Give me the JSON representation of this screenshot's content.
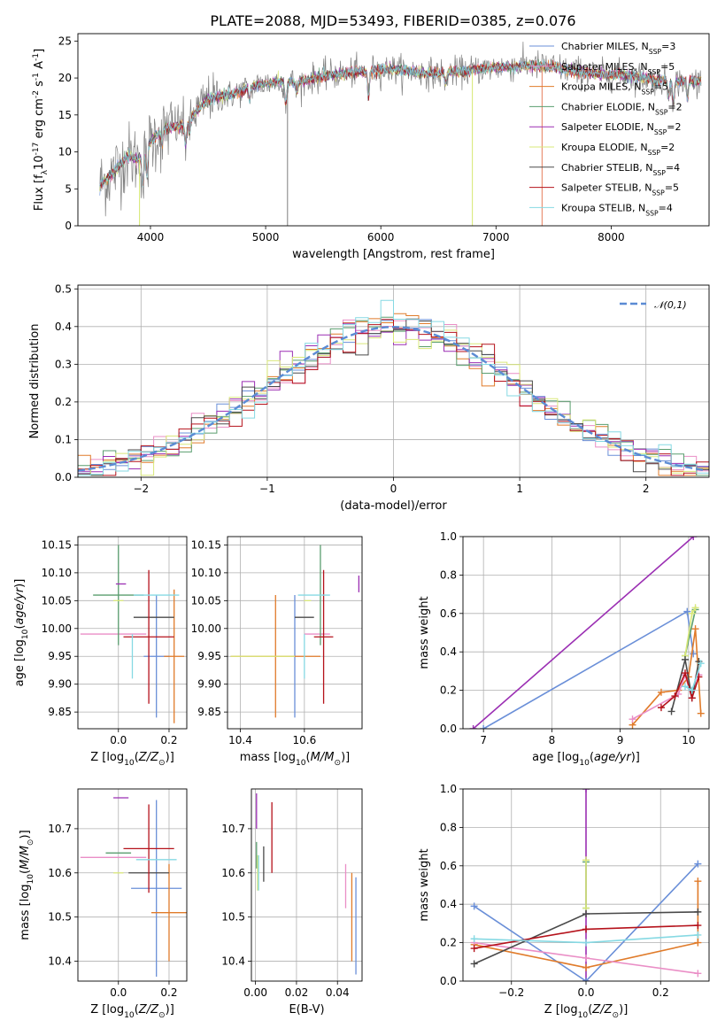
{
  "chart_data": [
    {
      "type": "line",
      "title": "PLATE=2088, MJD=53493, FIBERID=0385, z=0.076",
      "xlabel": "wavelength [Angstrom, rest frame]",
      "ylabel": "Flux [f$_\\lambda$10$^{-17}$ erg cm$^{-2}$ s$^{-1}$ A$^{-1}$]",
      "xlim": [
        3370,
        8850
      ],
      "ylim": [
        0,
        26
      ],
      "xticks": [
        4000,
        5000,
        6000,
        7000,
        8000
      ],
      "yticks": [
        0,
        5,
        10,
        15,
        20,
        25
      ],
      "grid": false,
      "legend_position": "top-right",
      "continuum_anchors": [
        [
          3560,
          5.5
        ],
        [
          3650,
          6.8
        ],
        [
          3800,
          9.3
        ],
        [
          3900,
          9.0
        ],
        [
          4000,
          11.4
        ],
        [
          4100,
          13.0
        ],
        [
          4300,
          13.8
        ],
        [
          4500,
          17.2
        ],
        [
          4700,
          17.7
        ],
        [
          4900,
          19.0
        ],
        [
          5100,
          19.5
        ],
        [
          5300,
          19.5
        ],
        [
          5500,
          20.3
        ],
        [
          5700,
          20.6
        ],
        [
          5900,
          21.0
        ],
        [
          6100,
          21.2
        ],
        [
          6300,
          20.8
        ],
        [
          6500,
          20.6
        ],
        [
          6700,
          20.9
        ],
        [
          6900,
          21.3
        ],
        [
          7100,
          21.5
        ],
        [
          7300,
          21.7
        ],
        [
          7500,
          21.5
        ],
        [
          7700,
          20.9
        ],
        [
          7900,
          20.5
        ],
        [
          8100,
          20.4
        ],
        [
          8300,
          20.0
        ],
        [
          8500,
          19.5
        ],
        [
          8700,
          19.6
        ],
        [
          8780,
          19.5
        ]
      ],
      "absorption_lines": [
        {
          "x": 3934,
          "depth": 4.5
        },
        {
          "x": 3969,
          "depth": 4.0
        },
        {
          "x": 4101,
          "depth": 2.0
        },
        {
          "x": 4304,
          "depth": 3.0
        },
        {
          "x": 4340,
          "depth": 2.0
        },
        {
          "x": 4861,
          "depth": 1.5
        },
        {
          "x": 5175,
          "depth": 3.0
        },
        {
          "x": 5270,
          "depth": 1.5
        },
        {
          "x": 5893,
          "depth": 3.5
        },
        {
          "x": 6563,
          "depth": 1.5
        },
        {
          "x": 8498,
          "depth": 2.0
        },
        {
          "x": 8542,
          "depth": 3.0
        },
        {
          "x": 8662,
          "depth": 2.5
        }
      ],
      "spikes": [
        {
          "x": 3905,
          "color": "#d5e871"
        },
        {
          "x": 5190,
          "color": "#7f7f7f"
        },
        {
          "x": 6795,
          "color": "#d5e871"
        },
        {
          "x": 7400,
          "color": "#e67e5c"
        }
      ],
      "legend": [
        {
          "label": "Chabrier MILES, N$_{SSP}$=3",
          "color": "#6a8fd8"
        },
        {
          "label": "Salpeter MILES, N$_{SSP}$=5",
          "color": "#ea8ec6"
        },
        {
          "label": "Kroupa MILES, N$_{SSP}$=5",
          "color": "#e07b2a"
        },
        {
          "label": "Chabrier ELODIE, N$_{SSP}$=2",
          "color": "#5a9e6f"
        },
        {
          "label": "Salpeter ELODIE, N$_{SSP}$=2",
          "color": "#9b2fb3"
        },
        {
          "label": "Kroupa ELODIE, N$_{SSP}$=2",
          "color": "#d9e87a"
        },
        {
          "label": "Chabrier STELIB, N$_{SSP}$=4",
          "color": "#4a4a4a"
        },
        {
          "label": "Salpeter STELIB, N$_{SSP}$=5",
          "color": "#b5121b"
        },
        {
          "label": "Kroupa STELIB, N$_{SSP}$=4",
          "color": "#86d9e3"
        }
      ]
    },
    {
      "type": "histogram",
      "xlabel": "(data-model)/error",
      "ylabel": "Normed distribution",
      "xlim": [
        -2.5,
        2.5
      ],
      "ylim": [
        0,
        0.51
      ],
      "xticks": [
        -2,
        -1,
        0,
        1,
        2
      ],
      "yticks": [
        0.0,
        0.1,
        0.2,
        0.3,
        0.4,
        0.5
      ],
      "grid": true,
      "legend_position": "top-right",
      "gaussian": {
        "label": "$\\mathcal{N}(0,1)$",
        "mean": 0,
        "sigma": 1,
        "color": "#5b8bd4"
      },
      "bin_width": 0.1
    },
    {
      "type": "scatter",
      "xlabel": "Z [log$_{10}$($Z/Z_\\odot$)]",
      "ylabel": "age  [log$_{10}$($age/yr$)]",
      "xlim": [
        -0.16,
        0.27
      ],
      "ylim": [
        9.82,
        10.165
      ],
      "xticks": [
        0.0,
        0.2
      ],
      "yticks": [
        9.85,
        9.9,
        9.95,
        10.0,
        10.05,
        10.1,
        10.15
      ],
      "points": [
        {
          "x": 0.15,
          "y": 9.95,
          "xerr": 0.05,
          "yerr": 0.11,
          "color": "#6a8fd8"
        },
        {
          "x": -0.02,
          "y": 9.99,
          "xerr": 0.13,
          "yerr": 0.0,
          "color": "#ea8ec6"
        },
        {
          "x": 0.22,
          "y": 9.95,
          "xerr": 0.04,
          "yerr": 0.12,
          "color": "#e07b2a"
        },
        {
          "x": 0.0,
          "y": 10.06,
          "xerr": 0.1,
          "yerr": 0.09,
          "color": "#5a9e6f"
        },
        {
          "x": 0.01,
          "y": 10.08,
          "xerr": 0.02,
          "yerr": 0.0,
          "color": "#9b2fb3"
        },
        {
          "x": 0.0,
          "y": 10.05,
          "xerr": 0.02,
          "yerr": 0.0,
          "color": "#d9e87a"
        },
        {
          "x": 0.14,
          "y": 10.02,
          "xerr": 0.08,
          "yerr": 0.0,
          "color": "#4a4a4a"
        },
        {
          "x": 0.12,
          "y": 9.985,
          "xerr": 0.1,
          "yerr": 0.12,
          "color": "#b5121b"
        },
        {
          "x": 0.15,
          "y": 10.06,
          "xerr": 0.09,
          "yerr": 0.0,
          "color": "#86d9e3"
        },
        {
          "x": 0.055,
          "y": 9.95,
          "xerr": 0.0,
          "yerr": 0.04,
          "color": "#86d9e3"
        }
      ]
    },
    {
      "type": "scatter",
      "xlabel": "mass [log$_{10}$($M/M_\\odot$)]",
      "xlim": [
        10.36,
        10.78
      ],
      "ylim": [
        9.82,
        10.165
      ],
      "xticks": [
        10.4,
        10.6
      ],
      "yticks": [
        9.85,
        9.9,
        9.95,
        10.0,
        10.05,
        10.1,
        10.15
      ],
      "points": [
        {
          "x": 10.57,
          "y": 9.95,
          "xerr": 0.0,
          "yerr": 0.11,
          "color": "#6a8fd8"
        },
        {
          "x": 10.64,
          "y": 9.99,
          "xerr": 0.04,
          "yerr": 0.0,
          "color": "#ea8ec6"
        },
        {
          "x": 10.51,
          "y": 9.95,
          "xerr": 0.14,
          "yerr": 0.11,
          "color": "#e07b2a"
        },
        {
          "x": 10.65,
          "y": 10.06,
          "xerr": 0.0,
          "yerr": 0.09,
          "color": "#5a9e6f"
        },
        {
          "x": 10.77,
          "y": 10.08,
          "xerr": 0.0,
          "yerr": 0.015,
          "color": "#9b2fb3"
        },
        {
          "x": 10.61,
          "y": 10.05,
          "xerr": 0.0,
          "yerr": 0.0,
          "color": "#d9e87a"
        },
        {
          "x": 10.6,
          "y": 10.02,
          "xerr": 0.03,
          "yerr": 0.0,
          "color": "#4a4a4a"
        },
        {
          "x": 10.66,
          "y": 9.985,
          "xerr": 0.03,
          "yerr": 0.12,
          "color": "#b5121b"
        },
        {
          "x": 10.63,
          "y": 10.06,
          "xerr": 0.05,
          "yerr": 0.0,
          "color": "#86d9e3"
        },
        {
          "x": 10.6,
          "y": 9.95,
          "xerr": 0.0,
          "yerr": 0.04,
          "color": "#86d9e3"
        },
        {
          "x": 10.47,
          "y": 9.95,
          "xerr": 0.1,
          "yerr": 0.0,
          "color": "#d9e87a"
        }
      ]
    },
    {
      "type": "line",
      "xlabel": "age  [log$_{10}$($age/yr$)]",
      "ylabel": "mass weight",
      "xlim": [
        6.7,
        10.3
      ],
      "ylim": [
        0,
        1.0
      ],
      "xticks": [
        7,
        8,
        9,
        10
      ],
      "yticks": [
        0.0,
        0.2,
        0.4,
        0.6,
        0.8,
        1.0
      ],
      "grid": true,
      "series": [
        {
          "color": "#9b2fb3",
          "x": [
            6.85,
            10.07
          ],
          "y": [
            0.0,
            1.0
          ]
        },
        {
          "color": "#6a8fd8",
          "x": [
            7.0,
            9.98,
            10.07
          ],
          "y": [
            0.0,
            0.61,
            0.39
          ]
        },
        {
          "color": "#5a9e6f",
          "x": [
            9.95,
            10.1
          ],
          "y": [
            0.38,
            0.62
          ]
        },
        {
          "color": "#d9e87a",
          "x": [
            9.95,
            10.05,
            10.1
          ],
          "y": [
            0.38,
            0.6,
            0.63
          ]
        },
        {
          "color": "#e07b2a",
          "x": [
            9.18,
            9.6,
            9.85,
            10.0,
            10.1,
            10.18
          ],
          "y": [
            0.02,
            0.19,
            0.2,
            0.27,
            0.52,
            0.08
          ]
        },
        {
          "color": "#ea8ec6",
          "x": [
            9.18,
            9.85,
            9.95,
            10.05,
            10.15
          ],
          "y": [
            0.05,
            0.18,
            0.28,
            0.16,
            0.28
          ]
        },
        {
          "color": "#4a4a4a",
          "x": [
            9.75,
            9.95,
            10.05,
            10.15
          ],
          "y": [
            0.09,
            0.36,
            0.16,
            0.35
          ]
        },
        {
          "color": "#b5121b",
          "x": [
            9.6,
            9.8,
            9.95,
            10.05,
            10.15
          ],
          "y": [
            0.11,
            0.17,
            0.29,
            0.16,
            0.27
          ]
        },
        {
          "color": "#86d9e3",
          "x": [
            9.95,
            10.05,
            10.18
          ],
          "y": [
            0.22,
            0.2,
            0.34
          ]
        }
      ]
    },
    {
      "type": "scatter",
      "xlabel": "Z [log$_{10}$($Z/Z_\\odot$)]",
      "ylabel": "mass [log$_{10}$($M/M_\\odot$)]",
      "xlim": [
        -0.16,
        0.27
      ],
      "ylim": [
        10.355,
        10.79
      ],
      "xticks": [
        0.0,
        0.2
      ],
      "yticks": [
        10.4,
        10.5,
        10.6,
        10.7
      ],
      "points": [
        {
          "x": 0.15,
          "y": 10.565,
          "xerr": 0.1,
          "yerr": 0.2,
          "color": "#6a8fd8"
        },
        {
          "x": -0.02,
          "y": 10.635,
          "xerr": 0.13,
          "yerr": 0.0,
          "color": "#ea8ec6"
        },
        {
          "x": 0.2,
          "y": 10.51,
          "xerr": 0.07,
          "yerr": 0.11,
          "color": "#e07b2a"
        },
        {
          "x": 0.0,
          "y": 10.645,
          "xerr": 0.05,
          "yerr": 0.0,
          "color": "#5a9e6f"
        },
        {
          "x": 0.01,
          "y": 10.77,
          "xerr": 0.03,
          "yerr": 0.0,
          "color": "#9b2fb3"
        },
        {
          "x": 0.0,
          "y": 10.6,
          "xerr": 0.02,
          "yerr": 0.0,
          "color": "#d9e87a"
        },
        {
          "x": 0.12,
          "y": 10.6,
          "xerr": 0.08,
          "yerr": 0.0,
          "color": "#4a4a4a"
        },
        {
          "x": 0.12,
          "y": 10.655,
          "xerr": 0.1,
          "yerr": 0.1,
          "color": "#b5121b"
        },
        {
          "x": 0.15,
          "y": 10.63,
          "xerr": 0.08,
          "yerr": 0.0,
          "color": "#86d9e3"
        }
      ]
    },
    {
      "type": "scatter",
      "xlabel": "E(B-V)",
      "xlim": [
        -0.002,
        0.052
      ],
      "ylim": [
        10.355,
        10.79
      ],
      "xticks": [
        0.0,
        0.02,
        0.04
      ],
      "yticks": [
        10.4,
        10.5,
        10.6,
        10.7
      ],
      "points": [
        {
          "x": 0.049,
          "y": 10.48,
          "yerr": 0.11,
          "color": "#6a8fd8"
        },
        {
          "x": 0.044,
          "y": 10.57,
          "yerr": 0.05,
          "color": "#ea8ec6"
        },
        {
          "x": 0.047,
          "y": 10.5,
          "yerr": 0.1,
          "color": "#e07b2a"
        },
        {
          "x": 0.0005,
          "y": 10.64,
          "yerr": 0.03,
          "color": "#5a9e6f"
        },
        {
          "x": 0.0005,
          "y": 10.74,
          "yerr": 0.04,
          "color": "#9b2fb3"
        },
        {
          "x": 0.001,
          "y": 10.6,
          "yerr": 0.04,
          "color": "#d9e87a"
        },
        {
          "x": 0.004,
          "y": 10.62,
          "yerr": 0.04,
          "color": "#4a4a4a"
        },
        {
          "x": 0.008,
          "y": 10.68,
          "yerr": 0.08,
          "color": "#b5121b"
        },
        {
          "x": 0.0015,
          "y": 10.6,
          "yerr": 0.04,
          "color": "#86d9e3"
        }
      ]
    },
    {
      "type": "line",
      "xlabel": "Z [log$_{10}$($Z/Z_\\odot$)]",
      "ylabel": "mass weight",
      "xlim": [
        -0.33,
        0.33
      ],
      "ylim": [
        0,
        1.0
      ],
      "xticks": [
        -0.2,
        0.0,
        0.2
      ],
      "yticks": [
        0.0,
        0.2,
        0.4,
        0.6,
        0.8,
        1.0
      ],
      "grid": true,
      "series": [
        {
          "color": "#9b2fb3",
          "x": [
            0.0,
            0.0
          ],
          "y": [
            0.0,
            1.0
          ]
        },
        {
          "color": "#6a8fd8",
          "x": [
            -0.3,
            0.0,
            0.3
          ],
          "y": [
            0.39,
            0.0,
            0.61
          ]
        },
        {
          "color": "#5a9e6f",
          "x": [
            0.0,
            0.0
          ],
          "y": [
            0.38,
            0.62
          ]
        },
        {
          "color": "#d9e87a",
          "x": [
            0.0,
            0.0
          ],
          "y": [
            0.38,
            0.63
          ]
        },
        {
          "color": "#e07b2a",
          "x": [
            -0.3,
            0.0,
            0.3,
            0.3
          ],
          "y": [
            0.19,
            0.07,
            0.2,
            0.52
          ]
        },
        {
          "color": "#ea8ec6",
          "x": [
            -0.3,
            0.0,
            0.3
          ],
          "y": [
            0.2,
            0.12,
            0.04
          ]
        },
        {
          "color": "#4a4a4a",
          "x": [
            -0.3,
            0.0,
            0.3
          ],
          "y": [
            0.09,
            0.35,
            0.36
          ]
        },
        {
          "color": "#b5121b",
          "x": [
            -0.3,
            0.0,
            0.3
          ],
          "y": [
            0.17,
            0.27,
            0.29
          ]
        },
        {
          "color": "#86d9e3",
          "x": [
            -0.3,
            0.0,
            0.3
          ],
          "y": [
            0.22,
            0.2,
            0.24
          ]
        }
      ]
    }
  ]
}
